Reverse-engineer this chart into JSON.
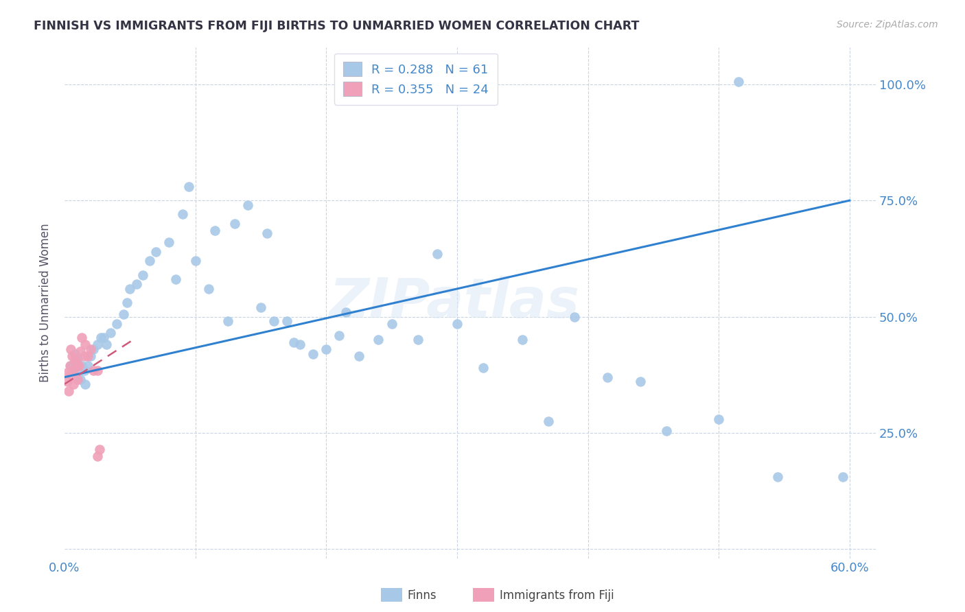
{
  "title": "FINNISH VS IMMIGRANTS FROM FIJI BIRTHS TO UNMARRIED WOMEN CORRELATION CHART",
  "source": "Source: ZipAtlas.com",
  "ylabel_label": "Births to Unmarried Women",
  "xlim": [
    0.0,
    0.62
  ],
  "ylim": [
    -0.02,
    1.08
  ],
  "xticks": [
    0.0,
    0.1,
    0.2,
    0.3,
    0.4,
    0.5,
    0.6
  ],
  "xticklabels": [
    "0.0%",
    "",
    "",
    "",
    "",
    "",
    "60.0%"
  ],
  "yticks": [
    0.0,
    0.25,
    0.5,
    0.75,
    1.0
  ],
  "yticklabels": [
    "",
    "25.0%",
    "50.0%",
    "75.0%",
    "100.0%"
  ],
  "legend_r_blue": "R = 0.288",
  "legend_n_blue": "N = 61",
  "legend_r_pink": "R = 0.355",
  "legend_n_pink": "N = 24",
  "blue_trend_x": [
    0.0,
    0.6
  ],
  "blue_trend_y": [
    0.37,
    0.75
  ],
  "pink_trend_x": [
    0.0,
    0.055
  ],
  "pink_trend_y": [
    0.355,
    0.455
  ],
  "watermark": "ZIPatlas",
  "blue_scatter_x": [
    0.005,
    0.008,
    0.01,
    0.01,
    0.012,
    0.013,
    0.015,
    0.016,
    0.018,
    0.02,
    0.022,
    0.025,
    0.028,
    0.03,
    0.032,
    0.035,
    0.04,
    0.045,
    0.048,
    0.05,
    0.055,
    0.06,
    0.065,
    0.07,
    0.08,
    0.085,
    0.09,
    0.095,
    0.1,
    0.11,
    0.115,
    0.125,
    0.13,
    0.14,
    0.15,
    0.155,
    0.16,
    0.17,
    0.175,
    0.18,
    0.19,
    0.2,
    0.21,
    0.215,
    0.225,
    0.24,
    0.25,
    0.27,
    0.285,
    0.3,
    0.32,
    0.35,
    0.37,
    0.39,
    0.415,
    0.44,
    0.46,
    0.5,
    0.515,
    0.545,
    0.595
  ],
  "blue_scatter_y": [
    0.395,
    0.42,
    0.41,
    0.38,
    0.365,
    0.395,
    0.385,
    0.355,
    0.395,
    0.415,
    0.43,
    0.44,
    0.455,
    0.455,
    0.44,
    0.465,
    0.485,
    0.505,
    0.53,
    0.56,
    0.57,
    0.59,
    0.62,
    0.64,
    0.66,
    0.58,
    0.72,
    0.78,
    0.62,
    0.56,
    0.685,
    0.49,
    0.7,
    0.74,
    0.52,
    0.68,
    0.49,
    0.49,
    0.445,
    0.44,
    0.42,
    0.43,
    0.46,
    0.51,
    0.415,
    0.45,
    0.485,
    0.45,
    0.635,
    0.485,
    0.39,
    0.45,
    0.275,
    0.5,
    0.37,
    0.36,
    0.255,
    0.28,
    1.005,
    0.155,
    0.155
  ],
  "pink_scatter_x": [
    0.002,
    0.002,
    0.003,
    0.004,
    0.005,
    0.005,
    0.006,
    0.007,
    0.007,
    0.008,
    0.009,
    0.01,
    0.01,
    0.011,
    0.012,
    0.013,
    0.015,
    0.016,
    0.018,
    0.02,
    0.022,
    0.025,
    0.025,
    0.027
  ],
  "pink_scatter_y": [
    0.38,
    0.36,
    0.34,
    0.395,
    0.375,
    0.43,
    0.415,
    0.385,
    0.355,
    0.41,
    0.405,
    0.395,
    0.365,
    0.395,
    0.425,
    0.455,
    0.415,
    0.44,
    0.415,
    0.43,
    0.385,
    0.385,
    0.2,
    0.215
  ]
}
